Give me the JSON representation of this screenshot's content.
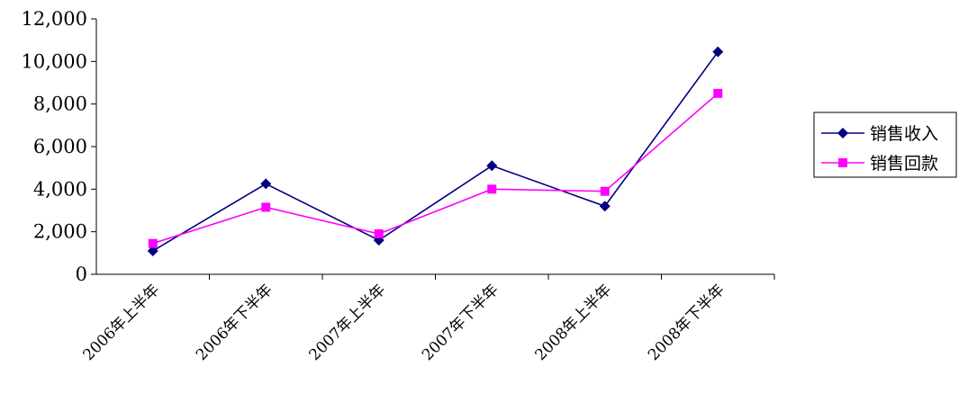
{
  "chart_data": {
    "type": "line",
    "categories": [
      "2006年上半年",
      "2006年下半年",
      "2007年上半年",
      "2007年下半年",
      "2008年上半年",
      "2008年下半年"
    ],
    "series": [
      {
        "name": "销售收入",
        "values": [
          1100,
          4250,
          1600,
          5100,
          3200,
          10450
        ],
        "color": "#000080",
        "marker": "diamond"
      },
      {
        "name": "销售回款",
        "values": [
          1450,
          3150,
          1900,
          4000,
          3900,
          8500
        ],
        "color": "#ff00ff",
        "marker": "square"
      }
    ],
    "ylim": [
      0,
      12000
    ],
    "yticks": [
      0,
      2000,
      4000,
      6000,
      8000,
      10000,
      12000
    ],
    "ytick_labels": [
      "0",
      "2,000",
      "4,000",
      "6,000",
      "8,000",
      "10,000",
      "12,000"
    ],
    "grid": false,
    "legend_position": "right"
  }
}
